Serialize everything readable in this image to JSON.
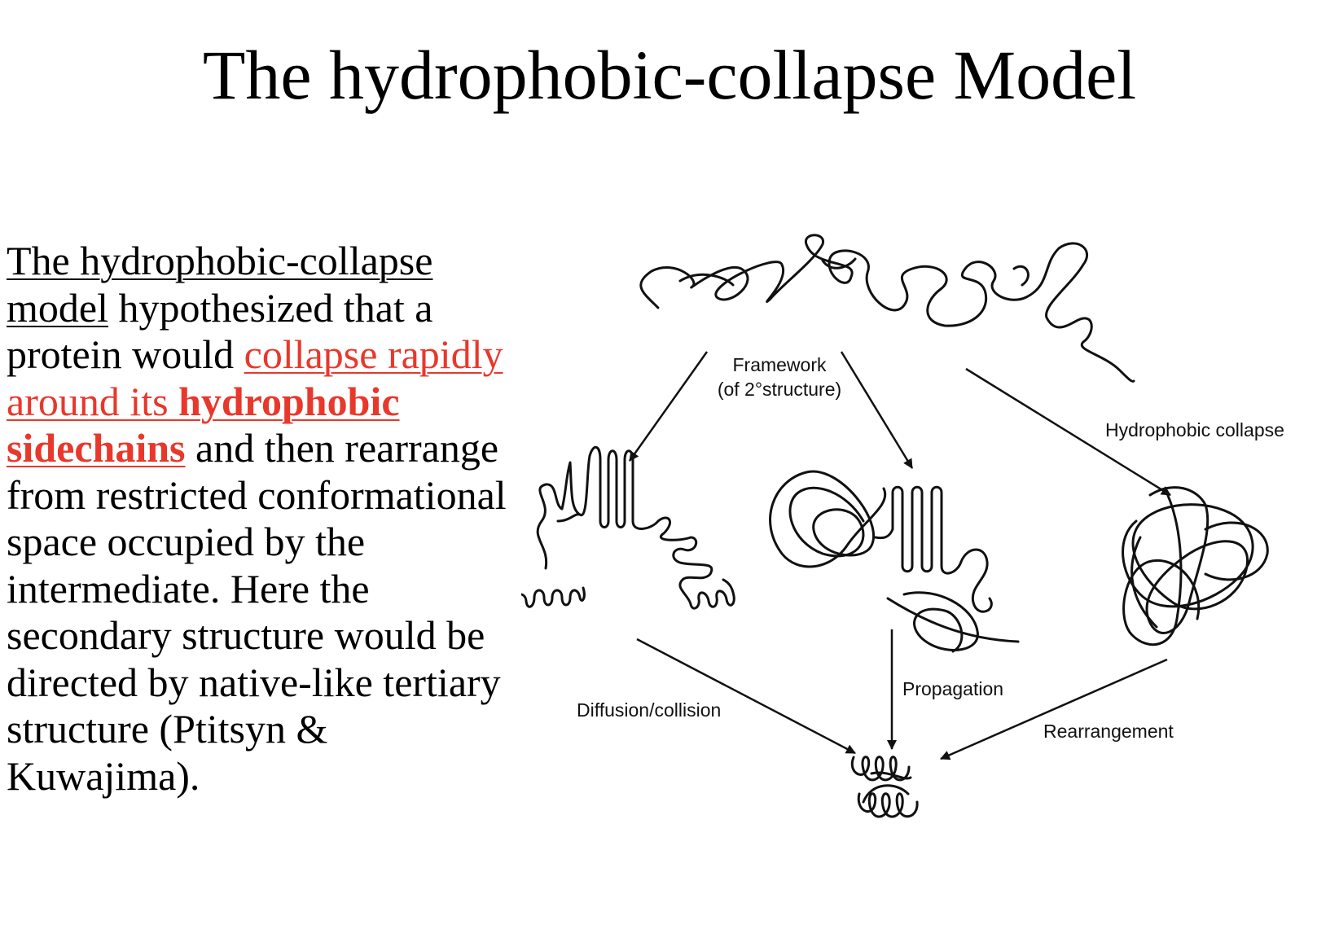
{
  "title": "The hydrophobic-collapse Model",
  "body": {
    "underlined_intro": "The hydrophobic-collapse model",
    "text_1": " hypothesized that a protein would ",
    "red_underlined": "collapse rapidly around its ",
    "red_bold_underlined": "hydrophobic sidechains",
    "text_2": " and then rearrange from restricted conformational space occupied by the intermediate.  Here the secondary structure would be directed by native-like tertiary structure (Ptitsyn & Kuwajima)."
  },
  "diagram": {
    "labels": {
      "framework_line1": "Framework",
      "framework_line2": "(of 2°structure)",
      "hydrophobic_collapse": "Hydrophobic collapse",
      "diffusion_collision": "Diffusion/collision",
      "propagation": "Propagation",
      "rearrangement": "Rearrangement"
    },
    "states": [
      "unfolded-chain",
      "framework-intermediate",
      "propagation-intermediate",
      "molten-globule",
      "native-state"
    ],
    "line_color": "#111111"
  },
  "colors": {
    "text": "#000000",
    "highlight_red": "#e8382b",
    "background": "#ffffff"
  }
}
